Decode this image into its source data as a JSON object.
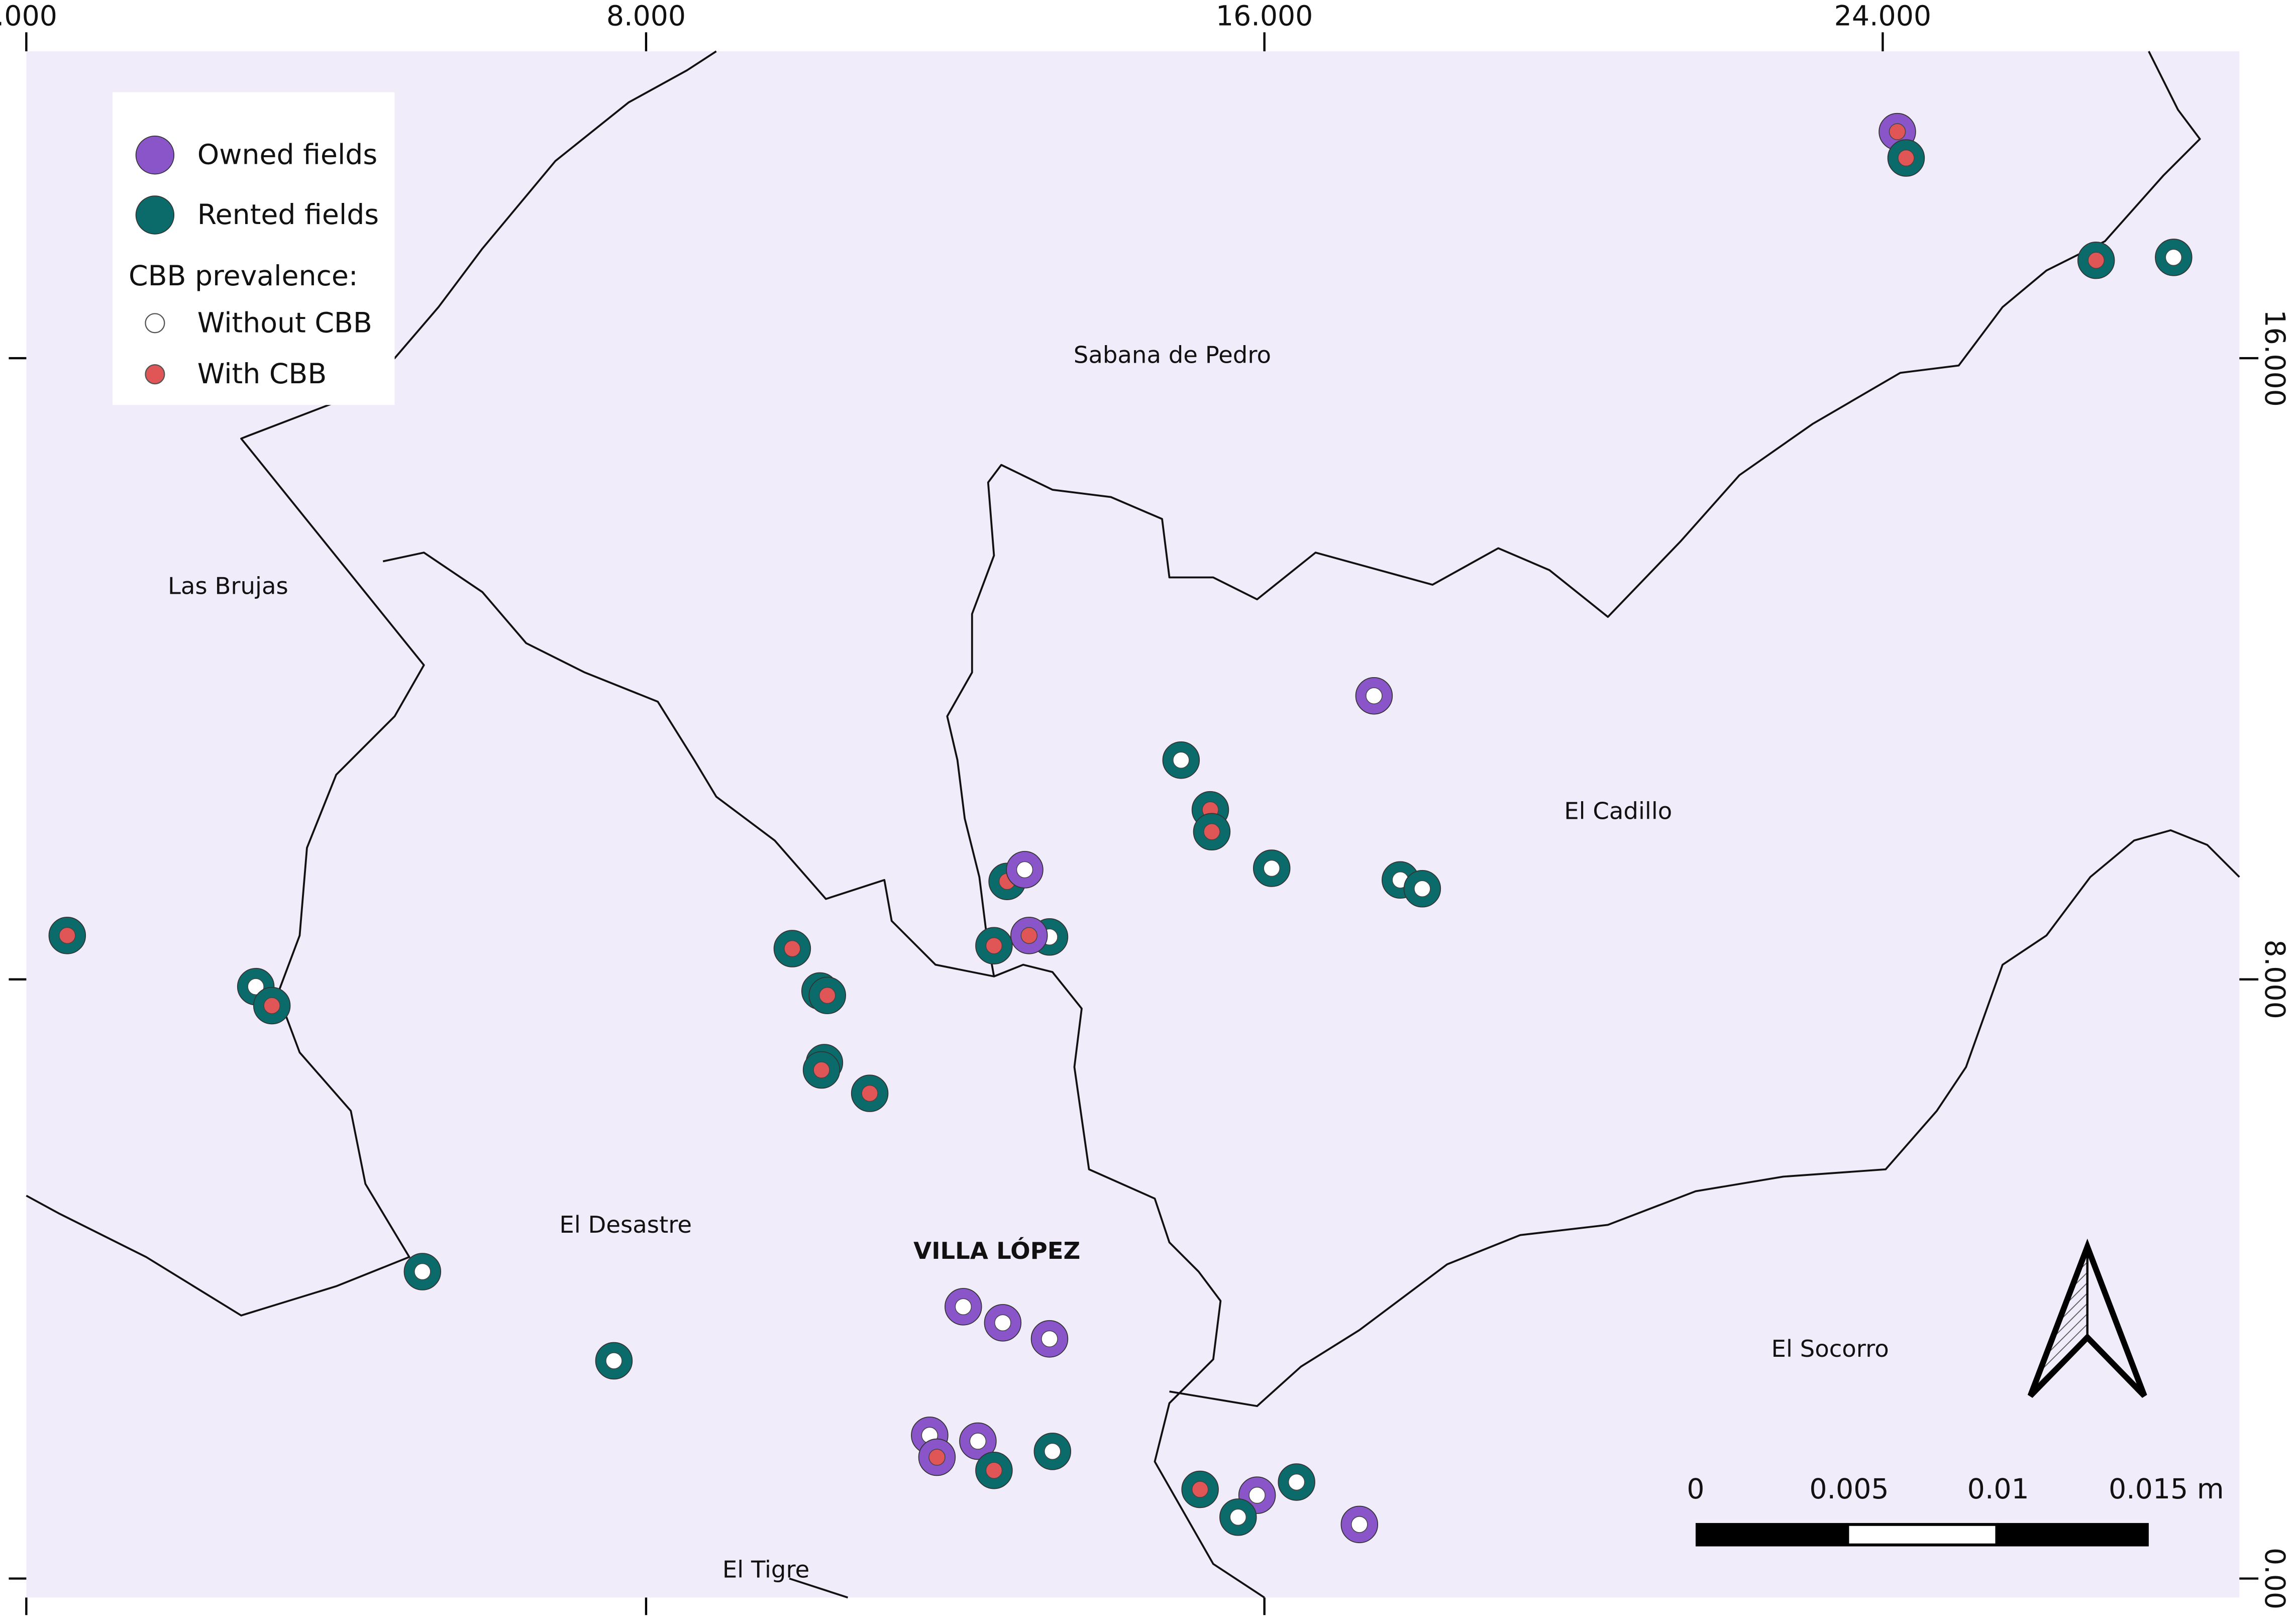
{
  "axes": {
    "top_ticks": [
      ".000",
      "8.000",
      "16.000",
      "24.000"
    ],
    "right_ticks": [
      "16.000",
      "8.000",
      "0.00"
    ]
  },
  "legend": {
    "layers": [
      "Owned fields",
      "Rented fields"
    ],
    "heading": "CBB prevalence:",
    "classes": [
      "Without CBB",
      "With CBB"
    ]
  },
  "places": [
    "Sabana de Pedro",
    "Las Brujas",
    "El Cadillo",
    "El Desastre",
    "VILLA LÓPEZ",
    "El Socorro",
    "El Tigre"
  ],
  "scale_bar": {
    "labels": [
      "0",
      "0.005",
      "0.01",
      "0.015 m"
    ]
  }
}
